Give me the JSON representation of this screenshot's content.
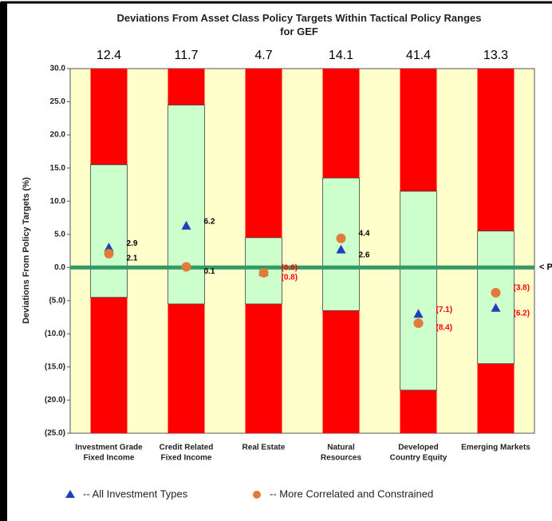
{
  "chart_data": {
    "type": "range_columns",
    "title": "Deviations From Asset Class Policy Targets Within Tactical Policy Ranges for GEF",
    "y_axis_label": "Deviations From Policy Targets (%)",
    "categories": [
      [
        "Investment Grade",
        "Fixed Income"
      ],
      [
        "Credit Related",
        "Fixed Income"
      ],
      [
        "Real Estate"
      ],
      [
        "Natural",
        "Resources"
      ],
      [
        "Developed",
        "Country Equity"
      ],
      [
        "Emerging Markets"
      ]
    ],
    "top_values": [
      12.4,
      11.7,
      4.7,
      14.1,
      41.4,
      13.3
    ],
    "range_low": [
      -4.5,
      -5.5,
      -5.5,
      -6.5,
      -18.5,
      -14.5
    ],
    "range_high": [
      15.5,
      24.5,
      4.5,
      13.5,
      11.5,
      5.5
    ],
    "range_color": "#ccffcc",
    "outside_color": "#ff0000",
    "plot_background": "#ffffcc",
    "target_line": {
      "value": 0,
      "label": "< Policy Target",
      "color": "#339966"
    },
    "series": [
      {
        "name": "--  All Investment Types",
        "marker": "triangle",
        "color": "#1f3fbf",
        "values": [
          2.9,
          6.2,
          -0.8,
          2.6,
          -7.1,
          -6.2
        ],
        "value_labels": [
          "2.9",
          "6.2",
          "(0.8)",
          "2.6",
          "(7.1)",
          "(6.2)"
        ]
      },
      {
        "name": "-- More Correlated and Constrained",
        "marker": "circle",
        "color": "#e07b39",
        "values": [
          2.1,
          0.1,
          -0.8,
          4.4,
          -8.4,
          -3.8
        ],
        "value_labels": [
          "2.1",
          "0.1",
          "(0.8)",
          "4.4",
          "(8.4)",
          "(3.8)"
        ]
      }
    ],
    "ylim": [
      -25,
      30
    ],
    "yticks": [
      {
        "value": -25,
        "label": "(25.0)"
      },
      {
        "value": -20,
        "label": "(20.0)"
      },
      {
        "value": -15,
        "label": "(15.0)"
      },
      {
        "value": -10,
        "label": "(10.0)"
      },
      {
        "value": -5,
        "label": "(5.0)"
      },
      {
        "value": 0,
        "label": "0.0"
      },
      {
        "value": 5,
        "label": "5.0"
      },
      {
        "value": 10,
        "label": "10.0"
      },
      {
        "value": 15,
        "label": "15.0"
      },
      {
        "value": 20,
        "label": "20.0"
      },
      {
        "value": 25,
        "label": "25.0"
      },
      {
        "value": 30,
        "label": "30.0"
      }
    ]
  }
}
